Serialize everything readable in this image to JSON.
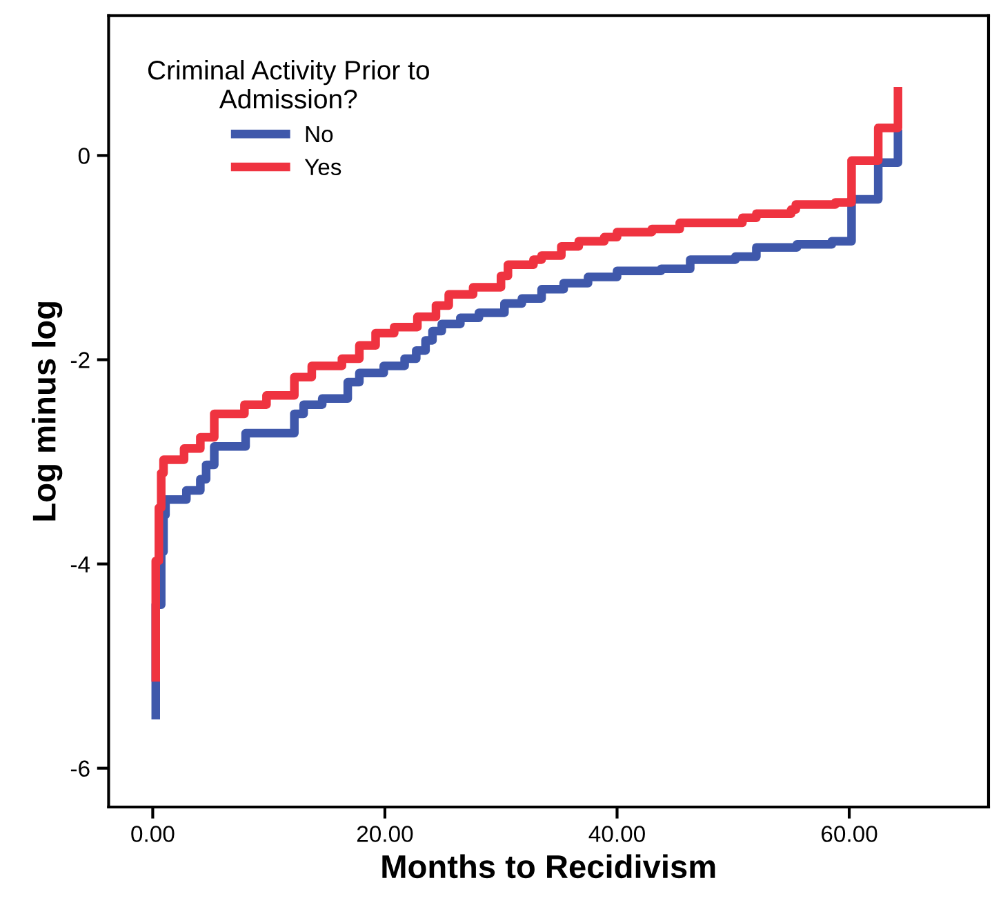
{
  "chart_data": {
    "type": "step",
    "xlabel": "Months to Recidivism",
    "ylabel": "Log minus log",
    "legend_title": "Criminal Activity Prior to\nAdmission?",
    "legend": "top left",
    "grid": false,
    "line_style": "solid",
    "marker": "none",
    "xlim": [
      -3.8,
      72
    ],
    "ylim": [
      -6.38,
      1.37
    ],
    "xticks": [
      {
        "value": 0,
        "label": "0.00"
      },
      {
        "value": 20,
        "label": "20.00"
      },
      {
        "value": 40,
        "label": "40.00"
      },
      {
        "value": 60,
        "label": "60.00"
      }
    ],
    "yticks": [
      -6,
      -4,
      -2,
      0
    ],
    "series": [
      {
        "name": "No",
        "color": "#3f58ab",
        "x": [
          0.26,
          0.26,
          0.73,
          0.93,
          1.1,
          2.9,
          4.1,
          4.6,
          5.3,
          8.0,
          12.2,
          13.0,
          14.6,
          16.8,
          17.8,
          19.9,
          21.7,
          22.7,
          23.5,
          24.1,
          24.9,
          26.5,
          28.1,
          30.3,
          31.8,
          33.5,
          35.4,
          37.5,
          40,
          43.8,
          46.3,
          50.2,
          52,
          55.5,
          58.5,
          60.2,
          62.5,
          64.2
        ],
        "values": [
          -5.48,
          -4.4,
          -3.88,
          -3.52,
          -3.37,
          -3.28,
          -3.17,
          -3.03,
          -2.85,
          -2.72,
          -2.53,
          -2.44,
          -2.38,
          -2.22,
          -2.13,
          -2.06,
          -1.99,
          -1.91,
          -1.81,
          -1.72,
          -1.65,
          -1.59,
          -1.54,
          -1.45,
          -1.4,
          -1.31,
          -1.25,
          -1.19,
          -1.13,
          -1.11,
          -1.02,
          -0.99,
          -0.9,
          -0.87,
          -0.84,
          -0.43,
          -0.07,
          0.21
        ]
      },
      {
        "name": "Yes",
        "color": "#ef3340",
        "x": [
          0.26,
          0.26,
          0.53,
          0.73,
          0.93,
          2.7,
          4.1,
          5.3,
          7.9,
          9.8,
          12.2,
          13.7,
          16.3,
          17.8,
          19.2,
          20.8,
          22.8,
          24.4,
          25.5,
          27.6,
          30,
          30.6,
          32.8,
          33.5,
          35.2,
          36.7,
          38.9,
          40,
          43,
          45.4,
          50.8,
          52,
          55,
          55.4,
          58.8,
          60.2,
          62.5,
          64.2
        ],
        "values": [
          -5.11,
          -3.97,
          -3.45,
          -3.11,
          -2.98,
          -2.87,
          -2.76,
          -2.53,
          -2.44,
          -2.35,
          -2.17,
          -2.06,
          -1.99,
          -1.86,
          -1.74,
          -1.68,
          -1.58,
          -1.47,
          -1.36,
          -1.29,
          -1.18,
          -1.07,
          -1.02,
          -0.98,
          -0.89,
          -0.84,
          -0.8,
          -0.75,
          -0.72,
          -0.66,
          -0.61,
          -0.57,
          -0.53,
          -0.48,
          -0.46,
          -0.05,
          0.27,
          0.63
        ]
      }
    ]
  }
}
